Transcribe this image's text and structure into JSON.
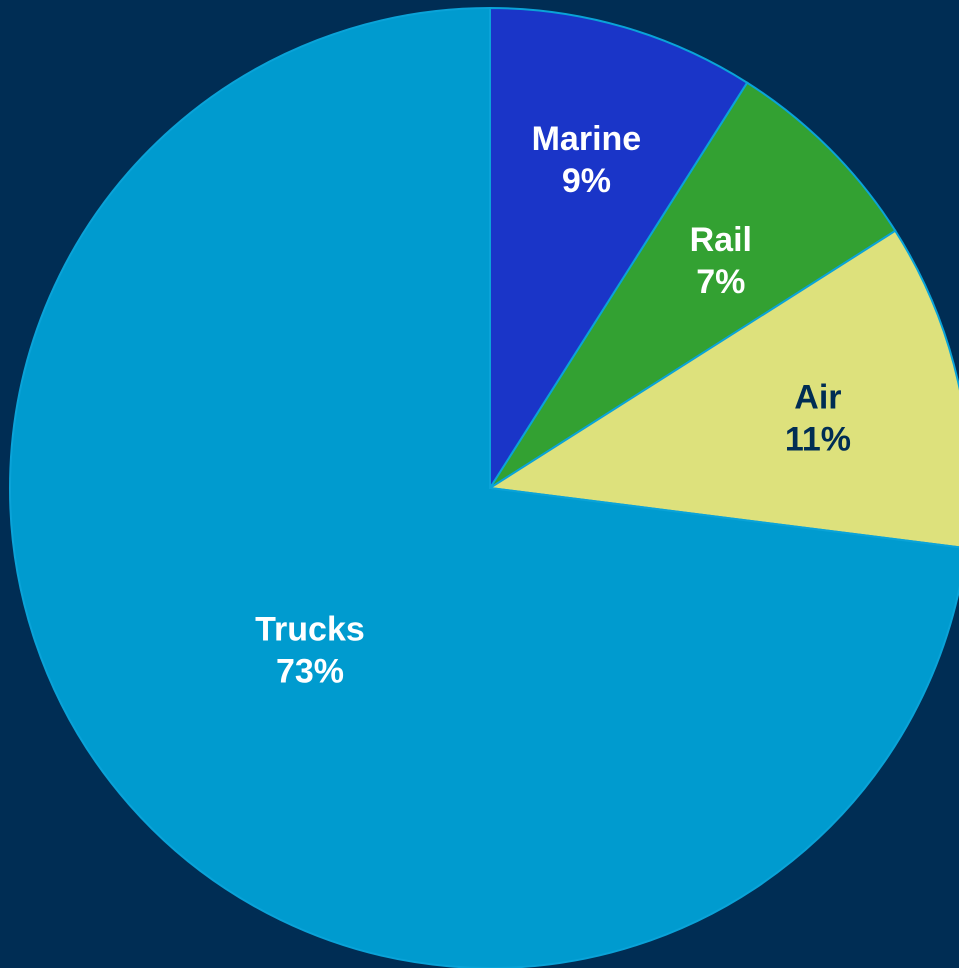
{
  "chart_data": {
    "type": "pie",
    "title": "",
    "start_angle_deg": 0,
    "direction": "clockwise",
    "slices": [
      {
        "name": "Marine",
        "value": 9,
        "label": "9%",
        "color": "#1a35c8",
        "label_color": "#ffffff"
      },
      {
        "name": "Rail",
        "value": 7,
        "label": "7%",
        "color": "#33a132",
        "label_color": "#ffffff"
      },
      {
        "name": "Air",
        "value": 11,
        "label": "11%",
        "color": "#dde17c",
        "label_color": "#002d54"
      },
      {
        "name": "Trucks",
        "value": 73,
        "label": "73%",
        "color": "#009bcf",
        "label_color": "#ffffff"
      }
    ]
  },
  "colors": {
    "background": "#002d54",
    "slice_border": "#0aa3d8"
  }
}
